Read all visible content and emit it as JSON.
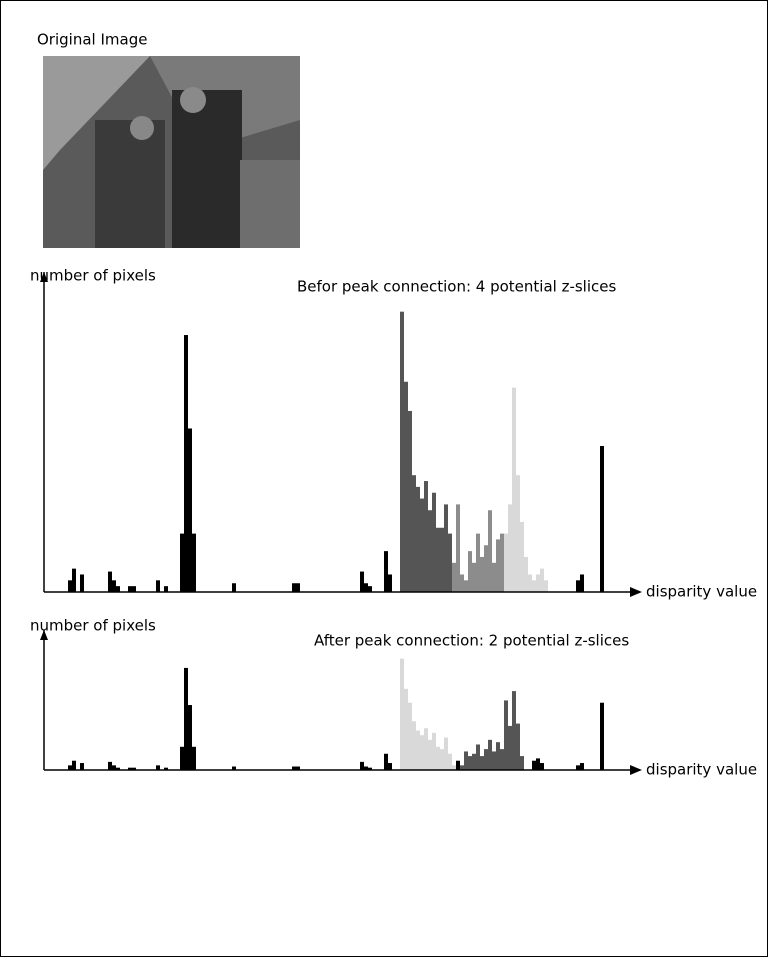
{
  "image": {
    "title": "Original Image"
  },
  "chart_data": [
    {
      "type": "histogram",
      "title": "Befor peak connection: 4 potential z-slices",
      "y_label": "number of pixels",
      "x_label": "disparity value",
      "xlim": [
        0,
        146
      ],
      "ylim": [
        0,
        100
      ],
      "series": [
        {
          "color": "#000000",
          "x": [
            6,
            7,
            9,
            16,
            17,
            18,
            21,
            22,
            28,
            30,
            34,
            35,
            36,
            37,
            47,
            62,
            63,
            79,
            80,
            81,
            85,
            86,
            133,
            134,
            139
          ],
          "values": [
            4,
            8,
            6,
            7,
            4,
            2,
            2,
            2,
            4,
            2,
            20,
            88,
            56,
            20,
            3,
            3,
            3,
            7,
            3,
            2,
            14,
            6,
            4,
            6,
            50
          ]
        },
        {
          "color": "#555555",
          "x": [
            89,
            90,
            91,
            92,
            93,
            94,
            95,
            96,
            97,
            98,
            99,
            100,
            101
          ],
          "values": [
            96,
            72,
            62,
            40,
            36,
            32,
            38,
            28,
            34,
            22,
            22,
            30,
            20
          ]
        },
        {
          "color": "#8c8c8c",
          "x": [
            102,
            103,
            104,
            105,
            106,
            107,
            108,
            109,
            110,
            111,
            112,
            113,
            114
          ],
          "values": [
            10,
            30,
            6,
            4,
            14,
            10,
            20,
            12,
            16,
            28,
            10,
            18,
            20
          ]
        },
        {
          "color": "#d9d9d9",
          "x": [
            115,
            116,
            117,
            118,
            119,
            120,
            121,
            122,
            123,
            124,
            125
          ],
          "values": [
            20,
            30,
            70,
            40,
            24,
            12,
            6,
            4,
            6,
            8,
            4
          ]
        }
      ]
    },
    {
      "type": "histogram",
      "title": "After peak connection: 2 potential z-slices",
      "y_label": "number of pixels",
      "x_label": "disparity value",
      "xlim": [
        0,
        146
      ],
      "ylim": [
        0,
        100
      ],
      "series": [
        {
          "color": "#000000",
          "x": [
            6,
            7,
            9,
            16,
            17,
            18,
            21,
            22,
            28,
            30,
            34,
            35,
            36,
            37,
            47,
            62,
            63,
            79,
            80,
            81,
            85,
            86,
            103,
            122,
            123,
            124,
            133,
            134,
            139
          ],
          "values": [
            4,
            8,
            6,
            7,
            4,
            2,
            2,
            2,
            4,
            2,
            20,
            88,
            56,
            20,
            3,
            3,
            3,
            7,
            3,
            2,
            14,
            6,
            8,
            8,
            10,
            6,
            4,
            6,
            58
          ]
        },
        {
          "color": "#d9d9d9",
          "x": [
            89,
            90,
            91,
            92,
            93,
            94,
            95,
            96,
            97,
            98,
            99,
            100,
            101,
            102
          ],
          "values": [
            96,
            70,
            58,
            42,
            34,
            30,
            36,
            26,
            32,
            20,
            18,
            28,
            14,
            4
          ]
        },
        {
          "color": "#555555",
          "x": [
            104,
            105,
            106,
            107,
            108,
            109,
            110,
            111,
            112,
            113,
            114,
            115,
            116,
            117,
            118,
            119
          ],
          "values": [
            4,
            16,
            12,
            14,
            22,
            12,
            18,
            26,
            16,
            24,
            18,
            60,
            38,
            68,
            40,
            12
          ]
        }
      ]
    }
  ]
}
